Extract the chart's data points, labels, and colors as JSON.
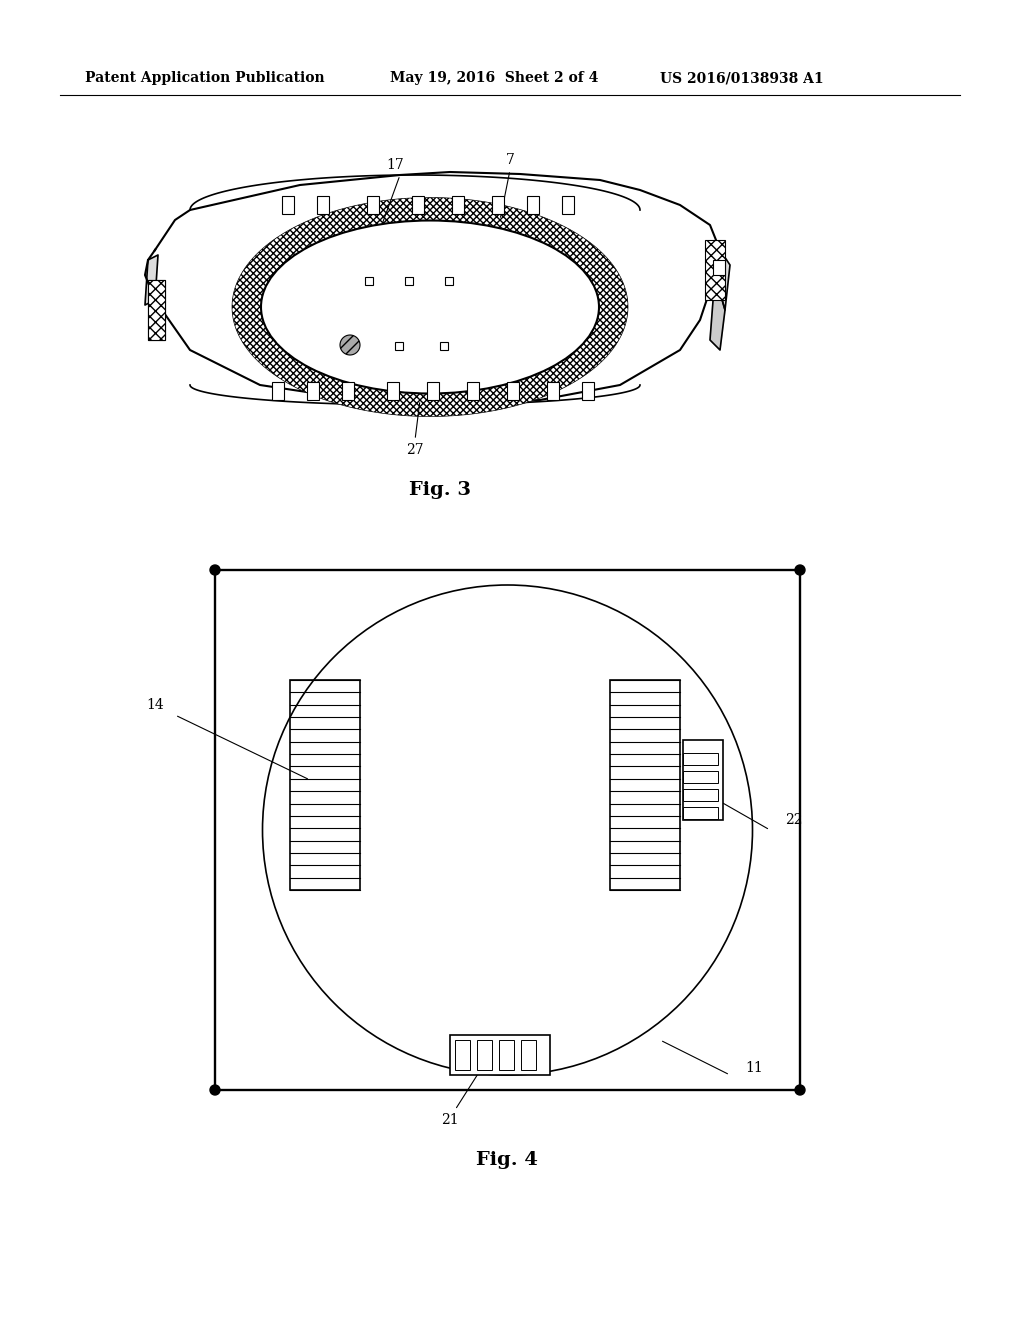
{
  "bg_color": "#ffffff",
  "header_left": "Patent Application Publication",
  "header_mid": "May 19, 2016  Sheet 2 of 4",
  "header_right": "US 2016/0138938 A1",
  "fig3_label": "Fig. 3",
  "fig4_label": "Fig. 4",
  "label_17": "17",
  "label_7": "7",
  "label_27": "27",
  "label_14": "14",
  "label_22": "22",
  "label_21": "21",
  "label_11": "11",
  "line_color": "#000000",
  "line_width": 1.2,
  "hatch_color": "#555555"
}
